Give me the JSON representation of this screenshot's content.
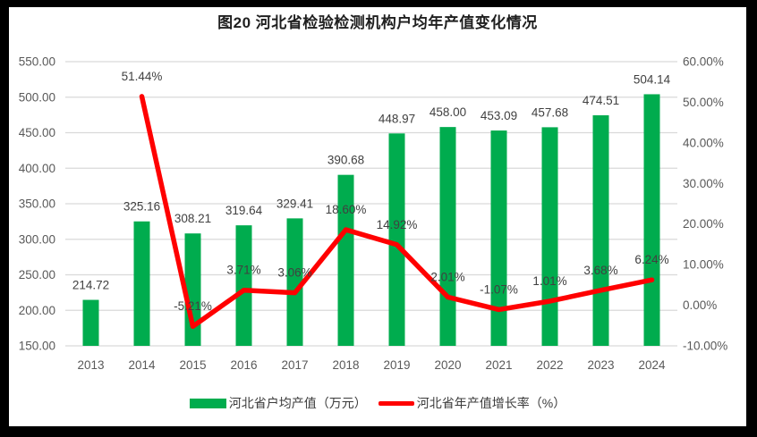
{
  "window": {
    "frame_color": "#000000",
    "canvas_background": "#ffffff"
  },
  "title": "图20  河北省检验检测机构户均年产值变化情况",
  "legend": {
    "items": [
      {
        "label": "河北省户均产值（万元）",
        "swatch": "bar-swatch",
        "color": "#00AC4E"
      },
      {
        "label": "河北省年产值增长率（%）",
        "swatch": "line-swatch",
        "color": "#FF0000"
      }
    ],
    "position": "bottom"
  },
  "colors": {
    "bar": "#00AC4E",
    "line": "#FF0000",
    "grid": "#D9D9D9",
    "axis_text": "#595959",
    "label_text": "#404040"
  },
  "chart_data": {
    "type": "combo (bar + line, dual axis)",
    "title": "图20  河北省检验检测机构户均年产值变化情况",
    "categories": [
      "2013",
      "2014",
      "2015",
      "2016",
      "2017",
      "2018",
      "2019",
      "2020",
      "2021",
      "2022",
      "2023",
      "2024"
    ],
    "series": [
      {
        "name": "河北省户均产值（万元）",
        "type": "bar",
        "axis": "left",
        "color": "#00AC4E",
        "values": [
          214.72,
          325.16,
          308.21,
          319.64,
          329.41,
          390.68,
          448.97,
          458.0,
          453.09,
          457.68,
          474.51,
          504.14
        ]
      },
      {
        "name": "河北省年产值增长率（%）",
        "type": "line",
        "axis": "right",
        "color": "#FF0000",
        "values": [
          null,
          51.44,
          -5.21,
          3.71,
          3.06,
          18.6,
          14.92,
          2.01,
          -1.07,
          1.01,
          3.68,
          6.24
        ]
      }
    ],
    "left_axis": {
      "min": 150,
      "max": 550,
      "step": 50,
      "tick_format": "0.00",
      "tick_labels": [
        "150.00",
        "200.00",
        "250.00",
        "300.00",
        "350.00",
        "400.00",
        "450.00",
        "500.00",
        "550.00"
      ]
    },
    "right_axis": {
      "min": -10,
      "max": 60,
      "step": 10,
      "tick_format": "0.00%",
      "tick_labels": [
        "-10.00%",
        "0.00%",
        "10.00%",
        "20.00%",
        "30.00%",
        "40.00%",
        "50.00%",
        "60.00%"
      ]
    },
    "grid": true,
    "data_labels": true,
    "legend_position": "bottom"
  }
}
